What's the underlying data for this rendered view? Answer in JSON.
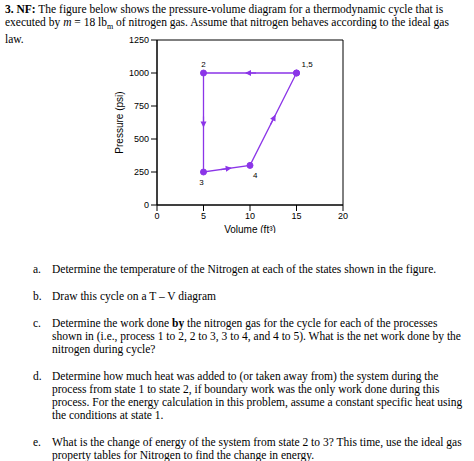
{
  "header": {
    "number": "3.",
    "tag": "NF:",
    "text": [
      "The figure below shows the pressure-volume diagram for a thermodynamic cycle that is executed by ",
      "m",
      " = 18 lb",
      "m",
      " of nitrogen gas. Assume that nitrogen behaves according to the ideal gas law."
    ]
  },
  "chart_data": {
    "type": "line",
    "x": [
      15,
      5,
      5,
      10,
      15
    ],
    "values": [
      1000,
      1000,
      250,
      300,
      1000
    ],
    "point_labels": [
      "1,5",
      "2",
      "3",
      "4",
      null
    ],
    "color": "#8b35e8",
    "marker": "circle",
    "xlabel": "Volume (ft³)",
    "ylabel": "Pressure (psi)",
    "xlim": [
      0,
      20
    ],
    "xticks": [
      0,
      5,
      10,
      15,
      20
    ],
    "ylim": [
      0,
      1250
    ],
    "yticks": [
      0,
      250,
      500,
      750,
      1000,
      1250
    ],
    "grid": false
  },
  "questions": [
    {
      "label": "a.",
      "text": [
        "Determine the temperature of the Nitrogen at each of the states shown in the figure."
      ]
    },
    {
      "label": "b.",
      "text": [
        "Draw this cycle on a T – V diagram"
      ]
    },
    {
      "label": "c.",
      "text": [
        "Determine the work done ",
        "by",
        " the nitrogen gas for the cycle for each of the processes shown in (i.e., process 1 to 2, 2 to 3, 3 to 4, and 4 to 5). What is the net work done by the nitrogen during cycle?"
      ]
    },
    {
      "label": "d.",
      "text": [
        "Determine how much heat was added to (or taken away from) the system during the process from state 1 to state 2, if boundary work was the only work done during this process. For the energy calculation in this problem, assume a constant specific heat using the conditions at state 1."
      ]
    },
    {
      "label": "e.",
      "text": [
        "What is the change of energy of the system from state 2 to 3? This time, use the ideal gas property tables for Nitrogen to find the change in energy."
      ]
    }
  ]
}
